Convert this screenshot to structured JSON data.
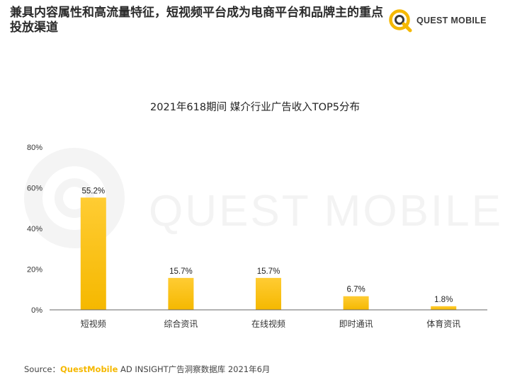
{
  "headline": "兼具内容属性和高流量特征，短视频平台成为电商平台和品牌主的重点投放渠道",
  "brand": {
    "name": "QUEST MOBILE",
    "logo_icon": "questmobile-logo-icon",
    "accent_color": "#F5B800"
  },
  "watermark": "QUEST MOBILE",
  "chart_data": {
    "type": "bar",
    "title": "2021年618期间 媒介行业广告收入TOP5分布",
    "categories": [
      "短视频",
      "综合资讯",
      "在线视频",
      "即时通讯",
      "体育资讯"
    ],
    "values": [
      55.2,
      15.7,
      15.7,
      6.7,
      1.8
    ],
    "data_labels": [
      "55.2%",
      "15.7%",
      "15.7%",
      "6.7%",
      "1.8%"
    ],
    "yticks": [
      0,
      20,
      40,
      60,
      80
    ],
    "ytick_labels": [
      "0%",
      "20%",
      "40%",
      "60%",
      "80%"
    ],
    "ylim": [
      0,
      80
    ],
    "xlabel": "",
    "ylabel": "",
    "grid": false,
    "bar_color_top": "#FFCC33",
    "bar_color_bottom": "#F5B800"
  },
  "source": {
    "prefix": "Source：",
    "brand": "QuestMobile",
    "text": " AD INSIGHT广告洞察数据库 2021年6月"
  }
}
